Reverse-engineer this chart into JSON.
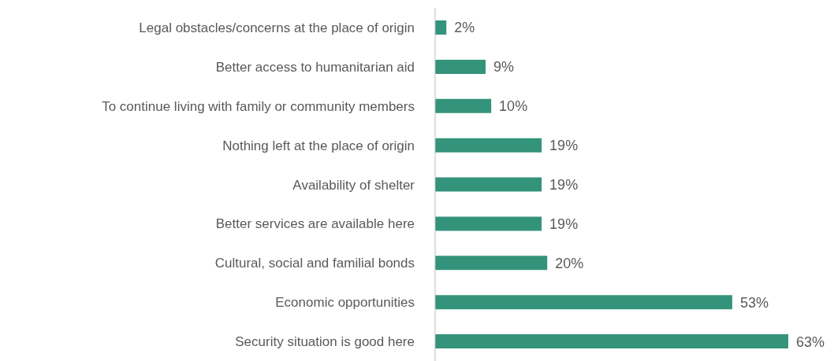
{
  "chart_data": {
    "type": "bar",
    "orientation": "horizontal",
    "categories": [
      "Legal obstacles/concerns at the place of origin",
      "Better access to humanitarian aid",
      "To continue living with family or community members",
      "Nothing left at the place of origin",
      "Availability of shelter",
      "Better services are available here",
      "Cultural, social and familial bonds",
      "Economic opportunities",
      "Security situation is good here"
    ],
    "values": [
      2,
      9,
      10,
      19,
      19,
      19,
      20,
      53,
      63
    ],
    "value_labels": [
      "2%",
      "9%",
      "10%",
      "19%",
      "19%",
      "19%",
      "20%",
      "53%",
      "63%"
    ],
    "color": "#33937b"
  }
}
